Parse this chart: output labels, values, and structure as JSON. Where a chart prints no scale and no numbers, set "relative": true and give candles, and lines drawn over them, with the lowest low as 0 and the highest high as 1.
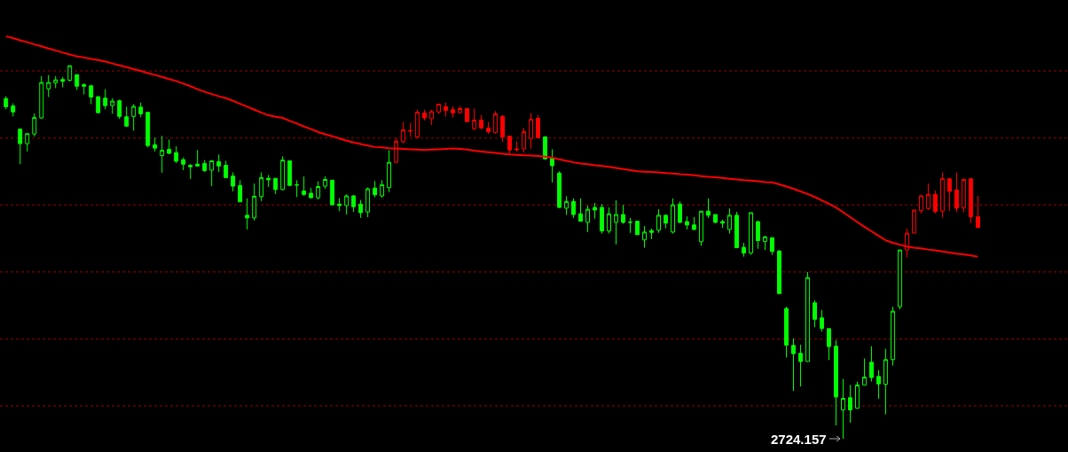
{
  "chart_data": {
    "type": "candlestick",
    "relative": true,
    "categories": [
      null,
      null,
      null,
      null,
      null,
      null,
      null,
      null,
      null,
      null,
      null,
      null,
      null,
      null,
      null,
      null,
      null,
      null,
      null,
      null,
      null,
      null,
      null,
      null,
      null,
      null,
      null,
      null,
      null,
      null,
      null,
      null,
      null,
      null,
      null,
      null,
      null,
      null,
      null,
      null,
      null,
      null,
      null,
      null,
      null,
      null,
      null,
      null,
      null,
      null,
      null,
      null,
      null,
      null,
      null,
      null,
      null,
      null,
      null,
      null,
      null,
      null,
      null,
      null,
      null,
      null,
      null,
      null,
      null,
      null,
      null,
      null,
      null,
      null,
      null,
      null,
      null,
      null,
      null,
      null,
      null,
      null,
      null,
      null,
      null,
      null,
      null,
      null,
      null,
      null,
      null,
      null,
      null,
      null,
      null,
      null,
      null,
      null,
      null,
      null,
      null,
      null,
      null,
      null,
      null,
      null,
      null,
      null,
      null,
      null,
      null,
      null,
      null,
      null,
      null,
      null,
      null,
      null,
      null,
      null,
      null,
      null,
      null,
      null,
      null,
      null,
      null,
      null,
      null,
      null,
      null,
      null,
      null,
      null,
      null,
      null,
      null,
      null
    ],
    "ohlc": [
      [
        0.912,
        0.918,
        0.883,
        0.89
      ],
      [
        0.892,
        0.899,
        0.864,
        0.876
      ],
      [
        0.83,
        0.83,
        0.736,
        0.791
      ],
      [
        0.791,
        0.818,
        0.77,
        0.818
      ],
      [
        0.817,
        0.872,
        0.81,
        0.861
      ],
      [
        0.86,
        0.972,
        0.857,
        0.955
      ],
      [
        0.938,
        0.975,
        0.916,
        0.955
      ],
      [
        0.954,
        0.972,
        0.94,
        0.962
      ],
      [
        0.963,
        0.97,
        0.942,
        0.958
      ],
      [
        0.961,
        1,
        0.958,
        1
      ],
      [
        0.976,
        0.976,
        0.935,
        0.945
      ],
      [
        0.949,
        0.953,
        0.923,
        0.945
      ],
      [
        0.946,
        0.949,
        0.897,
        0.916
      ],
      [
        0.917,
        0.917,
        0.874,
        0.874
      ],
      [
        0.913,
        0.937,
        0.883,
        0.893
      ],
      [
        0.893,
        0.913,
        0.871,
        0.905
      ],
      [
        0.906,
        0.909,
        0.857,
        0.864
      ],
      [
        0.863,
        0.89,
        0.836,
        0.838
      ],
      [
        0.864,
        0.897,
        0.826,
        0.891
      ],
      [
        0.889,
        0.901,
        0.862,
        0.871
      ],
      [
        0.875,
        0.875,
        0.781,
        0.786
      ],
      [
        0.788,
        0.807,
        0.77,
        0.779
      ],
      [
        0.759,
        0.812,
        0.713,
        0.773
      ],
      [
        0.776,
        0.802,
        0.763,
        0.765
      ],
      [
        0.767,
        0.784,
        0.739,
        0.744
      ],
      [
        0.748,
        0.754,
        0.72,
        0.736
      ],
      [
        0.733,
        0.736,
        0.696,
        0.729
      ],
      [
        0.736,
        0.774,
        0.73,
        0.731
      ],
      [
        0.738,
        0.747,
        0.715,
        0.719
      ],
      [
        0.72,
        0.745,
        0.677,
        0.745
      ],
      [
        0.743,
        0.762,
        0.715,
        0.731
      ],
      [
        0.733,
        0.745,
        0.698,
        0.7
      ],
      [
        0.704,
        0.714,
        0.663,
        0.677
      ],
      [
        0.679,
        0.693,
        0.635,
        0.635
      ],
      [
        0.599,
        0.644,
        0.561,
        0.592
      ],
      [
        0.592,
        0.684,
        0.585,
        0.65
      ],
      [
        0.649,
        0.714,
        0.637,
        0.7
      ],
      [
        0.698,
        0.707,
        0.675,
        0.694
      ],
      [
        0.698,
        0.698,
        0.656,
        0.668
      ],
      [
        0.668,
        0.757,
        0.666,
        0.747
      ],
      [
        0.745,
        0.745,
        0.677,
        0.679
      ],
      [
        0.681,
        0.693,
        0.648,
        0.68
      ],
      [
        0.664,
        0.703,
        0.651,
        0.655
      ],
      [
        0.658,
        0.672,
        0.644,
        0.646
      ],
      [
        0.646,
        0.69,
        0.641,
        0.676
      ],
      [
        0.677,
        0.703,
        0.67,
        0.695
      ],
      [
        0.693,
        0.693,
        0.627,
        0.627
      ],
      [
        0.629,
        0.645,
        0.61,
        0.625
      ],
      [
        0.625,
        0.655,
        0.601,
        0.651
      ],
      [
        0.651,
        0.653,
        0.608,
        0.622
      ],
      [
        0.629,
        0.64,
        0.592,
        0.606
      ],
      [
        0.608,
        0.674,
        0.594,
        0.67
      ],
      [
        0.672,
        0.691,
        0.647,
        0.654
      ],
      [
        0.651,
        0.693,
        0.646,
        0.681
      ],
      [
        0.673,
        0.774,
        0.661,
        0.741
      ],
      [
        0.741,
        0.806,
        0.739,
        0.797
      ],
      [
        0.796,
        0.849,
        0.792,
        0.828
      ],
      [
        0.826,
        0.847,
        0.81,
        0.825
      ],
      [
        0.809,
        0.882,
        0.805,
        0.875
      ],
      [
        0.873,
        0.882,
        0.853,
        0.86
      ],
      [
        0.858,
        0.882,
        0.841,
        0.877
      ],
      [
        0.876,
        0.897,
        0.871,
        0.897
      ],
      [
        0.89,
        0.901,
        0.864,
        0.88
      ],
      [
        0.882,
        0.891,
        0.861,
        0.873
      ],
      [
        0.874,
        0.892,
        0.872,
        0.885
      ],
      [
        0.885,
        0.887,
        0.85,
        0.85
      ],
      [
        0.831,
        0.885,
        0.827,
        0.854
      ],
      [
        0.854,
        0.868,
        0.83,
        0.833
      ],
      [
        0.833,
        0.849,
        0.817,
        0.823
      ],
      [
        0.821,
        0.878,
        0.818,
        0.871
      ],
      [
        0.864,
        0.868,
        0.796,
        0.809
      ],
      [
        0.811,
        0.811,
        0.763,
        0.774
      ],
      [
        0.777,
        0.797,
        0.769,
        0.775
      ],
      [
        0.777,
        0.833,
        0.767,
        0.823
      ],
      [
        0.805,
        0.873,
        0.778,
        0.856
      ],
      [
        0.859,
        0.868,
        0.807,
        0.807
      ],
      [
        0.809,
        0.811,
        0.748,
        0.75
      ],
      [
        0.752,
        0.776,
        0.687,
        0.732
      ],
      [
        0.712,
        0.717,
        0.618,
        0.62
      ],
      [
        0.618,
        0.65,
        0.6,
        0.636
      ],
      [
        0.636,
        0.644,
        0.592,
        0.601
      ],
      [
        0.603,
        0.644,
        0.583,
        0.583
      ],
      [
        0.58,
        0.625,
        0.554,
        0.615
      ],
      [
        0.62,
        0.632,
        0.59,
        0.613
      ],
      [
        0.62,
        0.629,
        0.55,
        0.557
      ],
      [
        0.557,
        0.62,
        0.55,
        0.603
      ],
      [
        0.58,
        0.639,
        0.521,
        0.601
      ],
      [
        0.601,
        0.627,
        0.576,
        0.58
      ],
      [
        0.581,
        0.592,
        0.552,
        0.58
      ],
      [
        0.583,
        0.584,
        0.547,
        0.547
      ],
      [
        0.533,
        0.57,
        0.512,
        0.554
      ],
      [
        0.558,
        0.563,
        0.535,
        0.553
      ],
      [
        0.559,
        0.615,
        0.552,
        0.599
      ],
      [
        0.599,
        0.601,
        0.564,
        0.578
      ],
      [
        0.554,
        0.644,
        0.55,
        0.627
      ],
      [
        0.629,
        0.636,
        0.578,
        0.58
      ],
      [
        0.582,
        0.596,
        0.561,
        0.573
      ],
      [
        0.573,
        0.594,
        0.559,
        0.561
      ],
      [
        0.528,
        0.61,
        0.517,
        0.61
      ],
      [
        0.61,
        0.644,
        0.592,
        0.599
      ],
      [
        0.601,
        0.601,
        0.578,
        0.58
      ],
      [
        0.582,
        0.587,
        0.565,
        0.578
      ],
      [
        0.561,
        0.617,
        0.55,
        0.599
      ],
      [
        0.599,
        0.608,
        0.512,
        0.512
      ],
      [
        0.513,
        0.525,
        0.488,
        0.498
      ],
      [
        0.498,
        0.606,
        0.493,
        0.606
      ],
      [
        0.582,
        0.584,
        0.509,
        0.531
      ],
      [
        0.529,
        0.544,
        0.506,
        0.541
      ],
      [
        0.539,
        0.539,
        0.493,
        0.502
      ],
      [
        0.503,
        0.506,
        0.389,
        0.389
      ],
      [
        0.349,
        0.354,
        0.218,
        0.251
      ],
      [
        0.25,
        0.269,
        0.128,
        0.228
      ],
      [
        0.229,
        0.252,
        0.14,
        0.207
      ],
      [
        0.207,
        0.447,
        0.207,
        0.432
      ],
      [
        0.364,
        0.371,
        0.299,
        0.32
      ],
      [
        0.324,
        0.345,
        0.287,
        0.296
      ],
      [
        0.295,
        0.295,
        0.211,
        0.247
      ],
      [
        0.248,
        0.264,
        0.036,
        0.112
      ],
      [
        0.077,
        0.16,
        0,
        0.108
      ],
      [
        0.11,
        0.144,
        0.043,
        0.077
      ],
      [
        0.082,
        0.153,
        0.082,
        0.144
      ],
      [
        0.144,
        0.215,
        0.144,
        0.165
      ],
      [
        0.205,
        0.248,
        0.153,
        0.164
      ],
      [
        0.167,
        0.184,
        0.107,
        0.147
      ],
      [
        0.146,
        0.241,
        0.065,
        0.212
      ],
      [
        0.212,
        0.354,
        0.196,
        0.342
      ],
      [
        0.354,
        0.506,
        0.347,
        0.506
      ],
      [
        0.506,
        0.563,
        0.486,
        0.551
      ],
      [
        0.551,
        0.613,
        0.551,
        0.613
      ],
      [
        0.612,
        0.654,
        0.604,
        0.651
      ],
      [
        0.617,
        0.684,
        0.613,
        0.655
      ],
      [
        0.655,
        0.665,
        0.604,
        0.609
      ],
      [
        0.61,
        0.714,
        0.593,
        0.697
      ],
      [
        0.697,
        0.697,
        0.611,
        0.663
      ],
      [
        0.667,
        0.714,
        0.607,
        0.618
      ],
      [
        0.619,
        0.697,
        0.607,
        0.695
      ],
      [
        0.697,
        0.697,
        0.578,
        0.595
      ],
      [
        0.595,
        0.651,
        0.566,
        0.566
      ]
    ],
    "colors": [
      "#00ff00",
      "#00ff00",
      "#00ff00",
      "#00ff00",
      "#00ff00",
      "#00ff00",
      "#00ff00",
      "#00ff00",
      "#00ff00",
      "#00ff00",
      "#00ff00",
      "#00ff00",
      "#00ff00",
      "#00ff00",
      "#00ff00",
      "#00ff00",
      "#00ff00",
      "#00ff00",
      "#00ff00",
      "#00ff00",
      "#00ff00",
      "#00ff00",
      "#00ff00",
      "#00ff00",
      "#00ff00",
      "#00ff00",
      "#00ff00",
      "#00ff00",
      "#00ff00",
      "#00ff00",
      "#00ff00",
      "#00ff00",
      "#00ff00",
      "#00ff00",
      "#00ff00",
      "#00ff00",
      "#00ff00",
      "#00ff00",
      "#00ff00",
      "#00ff00",
      "#00ff00",
      "#00ff00",
      "#00ff00",
      "#00ff00",
      "#00ff00",
      "#00ff00",
      "#00ff00",
      "#00ff00",
      "#00ff00",
      "#00ff00",
      "#00ff00",
      "#00ff00",
      "#00ff00",
      "#00ff00",
      "#00ff00",
      "#ff0000",
      "#ff0000",
      "#ff0000",
      "#ff0000",
      "#ff0000",
      "#ff0000",
      "#ff0000",
      "#ff0000",
      "#ff0000",
      "#ff0000",
      "#ff0000",
      "#ff0000",
      "#ff0000",
      "#ff0000",
      "#ff0000",
      "#ff0000",
      "#ff0000",
      "#ff0000",
      "#ff0000",
      "#ff0000",
      "#ff0000",
      "#00ff00",
      "#00ff00",
      "#00ff00",
      "#00ff00",
      "#00ff00",
      "#00ff00",
      "#00ff00",
      "#00ff00",
      "#00ff00",
      "#00ff00",
      "#00ff00",
      "#00ff00",
      "#00ff00",
      "#00ff00",
      "#00ff00",
      "#00ff00",
      "#00ff00",
      "#00ff00",
      "#00ff00",
      "#00ff00",
      "#00ff00",
      "#00ff00",
      "#00ff00",
      "#00ff00",
      "#00ff00",
      "#00ff00",
      "#00ff00",
      "#00ff00",
      "#00ff00",
      "#00ff00",
      "#00ff00",
      "#00ff00",
      "#00ff00",
      "#00ff00",
      "#00ff00",
      "#00ff00",
      "#00ff00",
      "#00ff00",
      "#00ff00",
      "#00ff00",
      "#00ff00",
      "#00ff00",
      "#00ff00",
      "#00ff00",
      "#00ff00",
      "#00ff00",
      "#00ff00",
      "#00ff00",
      "#00ff00",
      "#00ff00",
      "#00ff00",
      "#ff0000",
      "#ff0000",
      "#ff0000",
      "#ff0000",
      "#ff0000",
      "#ff0000",
      "#ff0000",
      "#ff0000",
      "#ff0000",
      "#ff0000",
      "#ff0000"
    ],
    "series": [
      {
        "type": "line",
        "color": "#ff0000",
        "values": [
          1.079,
          1.074,
          1.068,
          1.063,
          1.057,
          1.052,
          1.046,
          1.041,
          1.035,
          1.03,
          1.025,
          1.022,
          1.018,
          1.015,
          1.011,
          1.006,
          1.001,
          0.996,
          0.991,
          0.986,
          0.98,
          0.975,
          0.97,
          0.964,
          0.959,
          0.952,
          0.945,
          0.937,
          0.93,
          0.924,
          0.918,
          0.913,
          0.906,
          0.898,
          0.89,
          0.882,
          0.874,
          0.867,
          0.863,
          0.86,
          0.852,
          0.845,
          0.837,
          0.83,
          0.822,
          0.816,
          0.811,
          0.805,
          0.799,
          0.794,
          0.79,
          0.786,
          0.782,
          0.781,
          0.779,
          0.778,
          0.777,
          0.776,
          0.775,
          0.774,
          0.775,
          0.776,
          0.777,
          0.778,
          0.777,
          0.775,
          0.772,
          0.77,
          0.768,
          0.766,
          0.764,
          0.762,
          0.761,
          0.76,
          0.759,
          0.758,
          0.756,
          0.753,
          0.749,
          0.745,
          0.741,
          0.738,
          0.736,
          0.733,
          0.731,
          0.729,
          0.726,
          0.723,
          0.72,
          0.717,
          0.716,
          0.715,
          0.714,
          0.712,
          0.711,
          0.709,
          0.708,
          0.706,
          0.704,
          0.702,
          0.701,
          0.699,
          0.697,
          0.695,
          0.693,
          0.692,
          0.69,
          0.688,
          0.687,
          0.682,
          0.676,
          0.67,
          0.663,
          0.656,
          0.648,
          0.639,
          0.63,
          0.62,
          0.607,
          0.594,
          0.581,
          0.568,
          0.556,
          0.544,
          0.532,
          0.525,
          0.52,
          0.515,
          0.512,
          0.51,
          0.507,
          0.505,
          0.502,
          0.499,
          0.496,
          0.494,
          0.491,
          0.488
        ]
      }
    ],
    "ref_lines": [
      {
        "axis": "y",
        "value": 0.986,
        "color": "#990000",
        "line_style": "dotted"
      },
      {
        "axis": "y",
        "value": 0.806,
        "color": "#990000",
        "line_style": "dotted"
      },
      {
        "axis": "y",
        "value": 0.627,
        "color": "#990000",
        "line_style": "dotted"
      },
      {
        "axis": "y",
        "value": 0.447,
        "color": "#990000",
        "line_style": "dotted"
      },
      {
        "axis": "y",
        "value": 0.267,
        "color": "#990000",
        "line_style": "dotted"
      },
      {
        "axis": "y",
        "value": 0.088,
        "color": "#990000",
        "line_style": "dotted"
      }
    ],
    "annotations": [
      "2724.157"
    ]
  }
}
